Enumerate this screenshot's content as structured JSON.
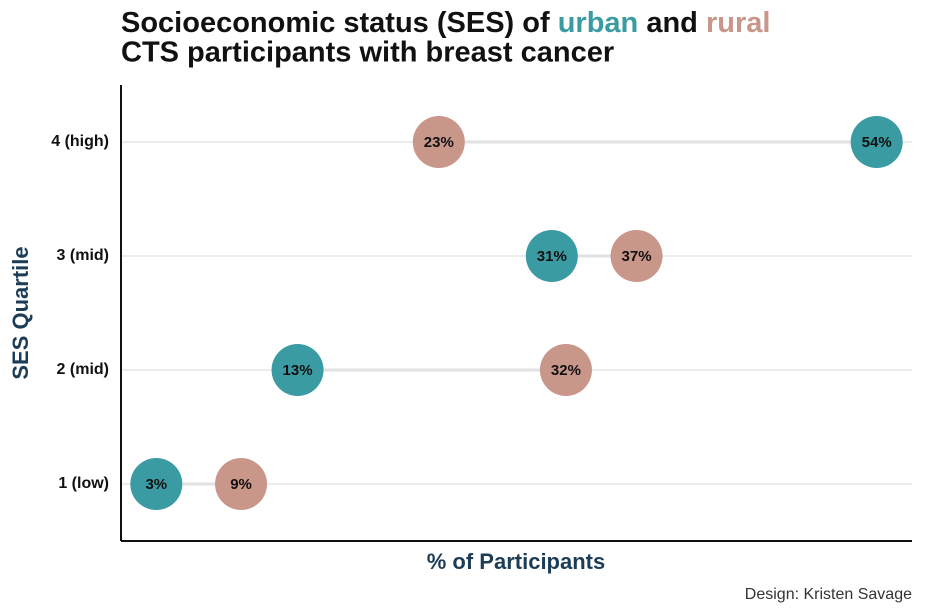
{
  "chart_data": {
    "type": "dumbbell",
    "title": {
      "prefix": "Socioeconomic status (SES) of",
      "joiner": "and",
      "line2": "CTS participants with breast cancer"
    },
    "x_label": "% of Participants",
    "y_label": "SES Quartile",
    "caption": "Design: Kristen Savage",
    "categories": [
      "1 (low)",
      "2 (mid)",
      "3 (mid)",
      "4 (high)"
    ],
    "series": [
      {
        "name": "urban",
        "color": "#3a9ba3",
        "values": [
          3,
          13,
          31,
          54
        ],
        "value_labels": [
          "3%",
          "13%",
          "31%",
          "54%"
        ]
      },
      {
        "name": "rural",
        "color": "#c9968a",
        "values": [
          9,
          32,
          37,
          23
        ],
        "value_labels": [
          "9%",
          "32%",
          "37%",
          "23%"
        ]
      }
    ],
    "xlim": [
      0.5,
      56.5
    ],
    "grid": true
  }
}
